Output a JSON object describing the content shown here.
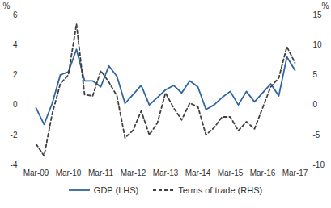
{
  "chart_data": {
    "type": "line",
    "categories": [
      "Mar-09",
      null,
      null,
      null,
      "Mar-10",
      null,
      null,
      null,
      "Mar-11",
      null,
      null,
      null,
      "Mar-12",
      null,
      null,
      null,
      "Mar-13",
      null,
      null,
      null,
      "Mar-14",
      null,
      null,
      null,
      "Mar-15",
      null,
      null,
      null,
      "Mar-16",
      null,
      null,
      null,
      "Mar-17"
    ],
    "series": [
      {
        "name": "GDP (LHS)",
        "color": "#2f65a0",
        "line_style": "solid",
        "values": [
          -0.2,
          -1.3,
          0.1,
          2.0,
          2.2,
          3.7,
          1.6,
          1.6,
          1.2,
          2.6,
          1.9,
          0.1,
          0.7,
          1.3,
          0.0,
          0.5,
          1.0,
          1.3,
          0.8,
          1.6,
          1.2,
          -0.3,
          0.0,
          0.5,
          0.9,
          0.0,
          0.9,
          0.2,
          0.8,
          1.4,
          0.6,
          3.2,
          2.3
        ]
      },
      {
        "name": "Terms of trade (RHS)",
        "color": "#404040",
        "line_style": "dashed",
        "axis": "y2",
        "values": [
          -6.5,
          -8.5,
          -1.5,
          3.5,
          5.0,
          13.5,
          1.7,
          1.5,
          5.7,
          3.8,
          1.5,
          -5.5,
          -4.2,
          -1.0,
          -5.0,
          -3.0,
          2.0,
          -0.5,
          -2.5,
          0.3,
          -0.3,
          -5.0,
          -3.8,
          -2.0,
          -2.0,
          -4.3,
          -2.8,
          -4.0,
          -0.5,
          3.0,
          4.5,
          9.7,
          7.0
        ]
      }
    ],
    "ylabel": "%",
    "y2label": "%",
    "ylim": [
      -4,
      6
    ],
    "yticks": [
      -4,
      -2,
      0,
      2,
      4,
      6
    ],
    "y2lim": [
      -10,
      15
    ],
    "y2ticks": [
      -10,
      -5,
      0,
      5,
      10,
      15
    ],
    "grid": false,
    "legend": "bottom"
  }
}
